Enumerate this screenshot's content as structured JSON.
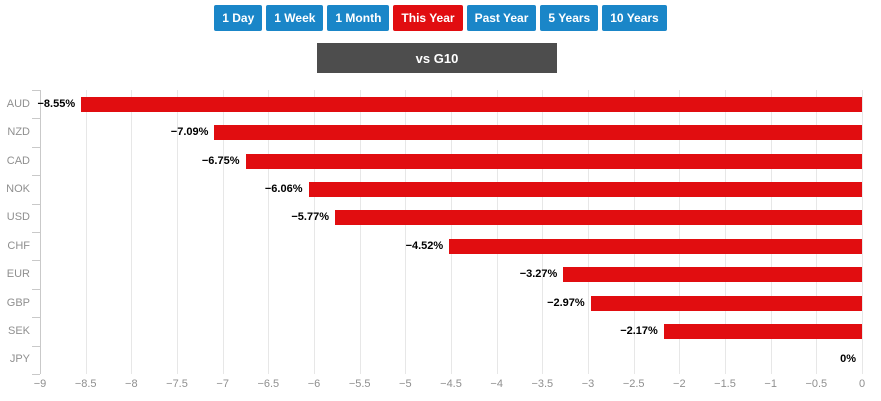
{
  "colors": {
    "button_blue": "#1a86c8",
    "active_red": "#e10d10",
    "bar_red": "#e10d10",
    "header_bg": "#4d4d4d",
    "gridline": "#e7e7e7",
    "axis_line": "#c9c9c9",
    "muted_text": "#8f8f8f",
    "value_text": "#000000"
  },
  "toolbar": {
    "buttons": [
      {
        "label": "1 Day",
        "active": false
      },
      {
        "label": "1 Week",
        "active": false
      },
      {
        "label": "1 Month",
        "active": false
      },
      {
        "label": "This Year",
        "active": true
      },
      {
        "label": "Past Year",
        "active": false
      },
      {
        "label": "5 Years",
        "active": false
      },
      {
        "label": "10 Years",
        "active": false
      }
    ]
  },
  "panel": {
    "title": "vs G10"
  },
  "chart_data": {
    "type": "bar",
    "orientation": "horizontal",
    "title": "vs G10",
    "categories": [
      "AUD",
      "NZD",
      "CAD",
      "NOK",
      "USD",
      "CHF",
      "EUR",
      "GBP",
      "SEK",
      "JPY"
    ],
    "values": [
      -8.55,
      -7.09,
      -6.75,
      -6.06,
      -5.77,
      -4.52,
      -3.27,
      -2.97,
      -2.17,
      0
    ],
    "value_labels": [
      "−8.55%",
      "−7.09%",
      "−6.75%",
      "−6.06%",
      "−5.77%",
      "−4.52%",
      "−3.27%",
      "−2.97%",
      "−2.17%",
      "0%"
    ],
    "xlim": [
      -9,
      0
    ],
    "x_ticks": [
      -9,
      -8.5,
      -8,
      -7.5,
      -7,
      -6.5,
      -6,
      -5.5,
      -5,
      -4.5,
      -4,
      -3.5,
      -3,
      -2.5,
      -2,
      -1.5,
      -1,
      -0.5,
      0
    ],
    "x_tick_labels": [
      "−9",
      "−8.5",
      "−8",
      "−7.5",
      "−7",
      "−6.5",
      "−6",
      "−5.5",
      "−5",
      "−4.5",
      "−4",
      "−3.5",
      "−3",
      "−2.5",
      "−2",
      "−1.5",
      "−1",
      "−0.5",
      "0"
    ],
    "xlabel": "",
    "ylabel": "",
    "grid": true,
    "legend": false,
    "bar_color": "#e10d10"
  }
}
